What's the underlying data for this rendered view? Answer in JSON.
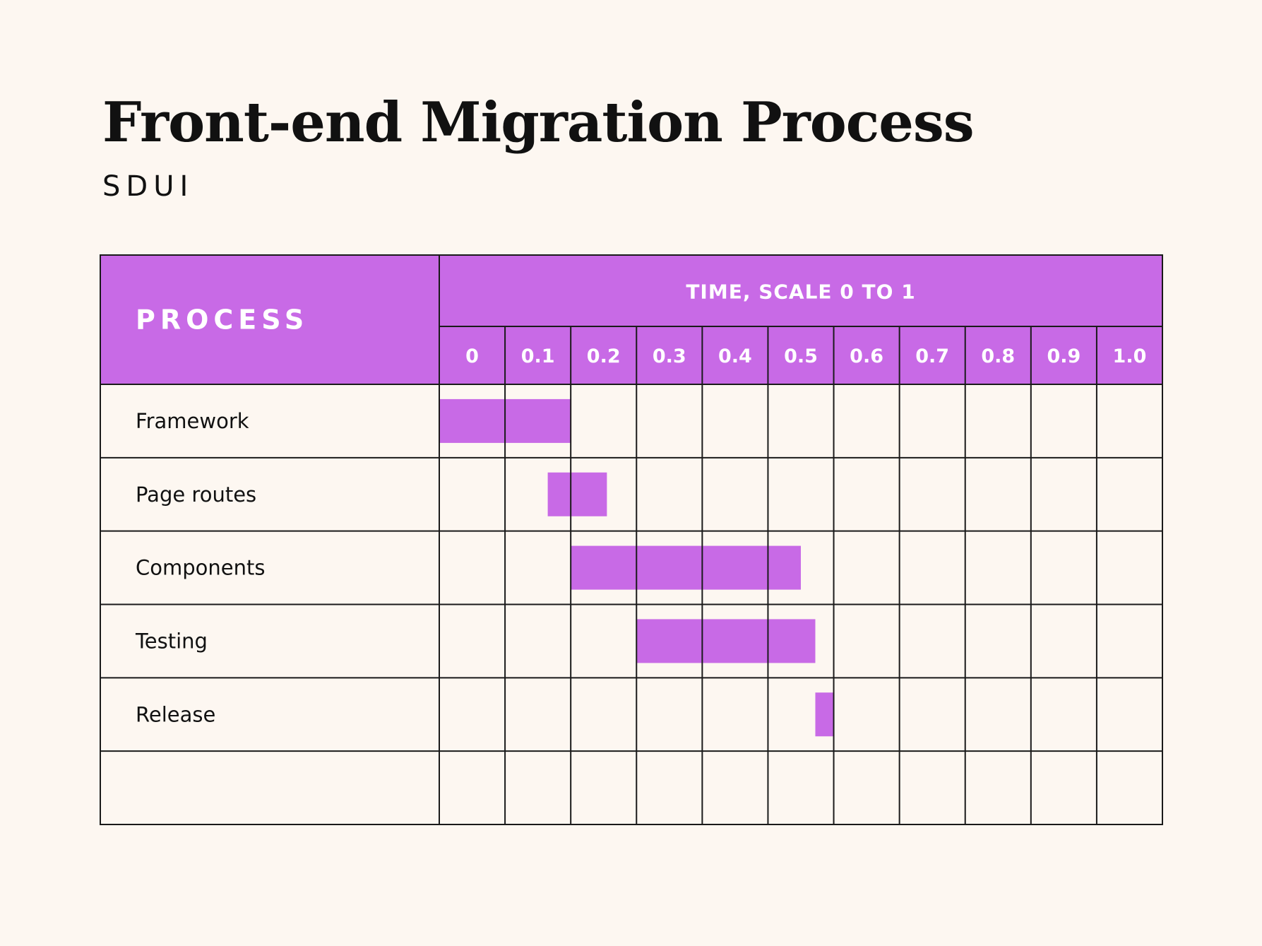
{
  "title": "Front-end Migration Process",
  "subtitle": "SDUI",
  "colors": {
    "background": "#fdf7f1",
    "accent": "#c86ae6",
    "header_text": "#ffffff",
    "grid": "#1a1a1a"
  },
  "chart_data": {
    "type": "bar",
    "orientation": "horizontal-gantt",
    "row_header": "PROCESS",
    "time_header": "TIME, SCALE 0 TO 1",
    "tick_labels": [
      "0",
      "0.1",
      "0.2",
      "0.3",
      "0.4",
      "0.5",
      "0.6",
      "0.7",
      "0.8",
      "0.9",
      "1.0"
    ],
    "xlim": [
      0,
      1.1
    ],
    "grid": true,
    "tasks": [
      {
        "name": "Framework",
        "start": 0.0,
        "end": 0.2
      },
      {
        "name": "Page routes",
        "start": 0.165,
        "end": 0.255
      },
      {
        "name": "Components",
        "start": 0.2,
        "end": 0.55
      },
      {
        "name": "Testing",
        "start": 0.3,
        "end": 0.572
      },
      {
        "name": "Release",
        "start": 0.572,
        "end": 0.6
      },
      {
        "name": "",
        "start": null,
        "end": null
      }
    ]
  }
}
